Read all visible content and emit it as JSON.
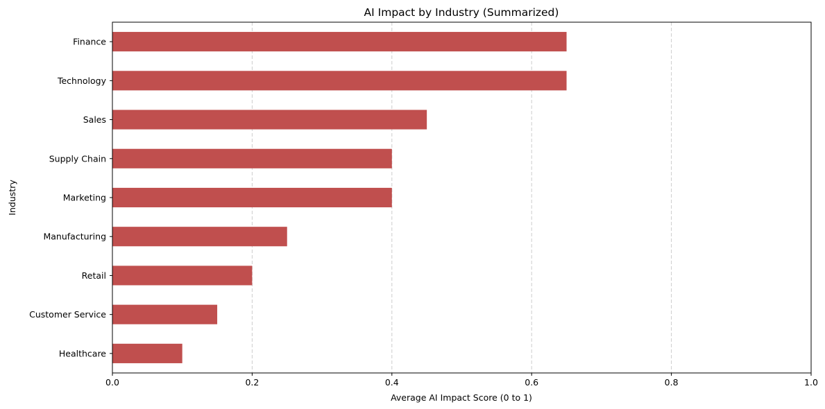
{
  "chart_data": {
    "type": "bar",
    "orientation": "horizontal",
    "title": "AI Impact by Industry (Summarized)",
    "xlabel": "Average AI Impact Score (0 to 1)",
    "ylabel": "Industry",
    "xlim": [
      0,
      1
    ],
    "xticks": [
      "0.0",
      "0.2",
      "0.4",
      "0.6",
      "0.8",
      "1.0"
    ],
    "grid": "x-dashed",
    "bar_color": "#c04f4e",
    "categories": [
      "Finance",
      "Technology",
      "Sales",
      "Supply Chain",
      "Marketing",
      "Manufacturing",
      "Retail",
      "Customer Service",
      "Healthcare"
    ],
    "values": [
      0.65,
      0.65,
      0.45,
      0.4,
      0.4,
      0.25,
      0.2,
      0.15,
      0.1
    ]
  }
}
